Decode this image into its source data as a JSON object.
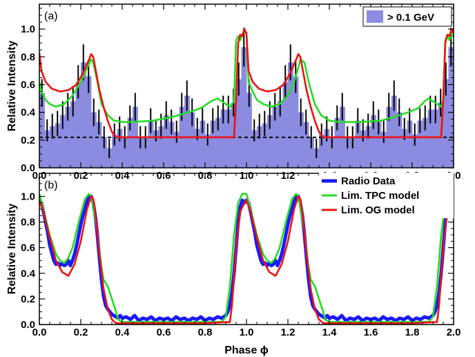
{
  "chart_data": [
    {
      "type": "bar",
      "panel_label": "(a)",
      "ylabel": "Relative Intensity",
      "xlabel": "",
      "xlim": [
        0.0,
        2.0
      ],
      "ylim": [
        0.0,
        1.18
      ],
      "xticks": [
        "0.0",
        "0.2",
        "0.4",
        "0.6",
        "0.8",
        "1.0",
        "1.2",
        "1.4",
        "1.6",
        "1.8",
        "2.0"
      ],
      "yticks": [
        "0.0",
        "0.2",
        "0.4",
        "0.6",
        "0.8",
        "1.0"
      ],
      "background_level": 0.22,
      "bars": {
        "name": "> 0.1 GeV",
        "color": "#8b8be0",
        "bin_width": 0.025,
        "values": [
          0.54,
          0.27,
          0.3,
          0.32,
          0.38,
          0.44,
          0.48,
          0.62,
          0.76,
          0.66,
          0.4,
          0.33,
          0.22,
          0.14,
          0.24,
          0.28,
          0.22,
          0.36,
          0.44,
          0.22,
          0.22,
          0.34,
          0.27,
          0.3,
          0.38,
          0.33,
          0.26,
          0.44,
          0.52,
          0.4,
          0.28,
          0.34,
          0.24,
          0.34,
          0.36,
          0.42,
          0.42,
          0.47,
          0.64,
          0.87,
          0.54,
          0.27,
          0.3,
          0.32,
          0.38,
          0.44,
          0.48,
          0.62,
          0.76,
          0.66,
          0.4,
          0.33,
          0.22,
          0.14,
          0.24,
          0.28,
          0.22,
          0.36,
          0.44,
          0.22,
          0.22,
          0.34,
          0.27,
          0.3,
          0.38,
          0.33,
          0.26,
          0.44,
          0.52,
          0.4,
          0.28,
          0.34,
          0.24,
          0.34,
          0.36,
          0.42,
          0.42,
          0.47,
          0.64,
          0.87
        ],
        "errors": [
          0.1,
          0.08,
          0.09,
          0.09,
          0.1,
          0.1,
          0.11,
          0.12,
          0.13,
          0.12,
          0.1,
          0.09,
          0.08,
          0.07,
          0.08,
          0.09,
          0.08,
          0.09,
          0.1,
          0.08,
          0.08,
          0.09,
          0.08,
          0.09,
          0.1,
          0.09,
          0.08,
          0.1,
          0.11,
          0.1,
          0.08,
          0.09,
          0.08,
          0.09,
          0.09,
          0.1,
          0.1,
          0.1,
          0.12,
          0.14,
          0.1,
          0.08,
          0.09,
          0.09,
          0.1,
          0.1,
          0.11,
          0.12,
          0.13,
          0.12,
          0.1,
          0.09,
          0.08,
          0.07,
          0.08,
          0.09,
          0.08,
          0.09,
          0.1,
          0.08,
          0.08,
          0.09,
          0.08,
          0.09,
          0.1,
          0.09,
          0.08,
          0.1,
          0.11,
          0.1,
          0.08,
          0.09,
          0.08,
          0.09,
          0.09,
          0.1,
          0.1,
          0.1,
          0.12,
          0.14
        ]
      },
      "series": [
        {
          "name": "Lim. TPC model",
          "color": "#22dd22",
          "x": [
            0.0,
            0.01,
            0.03,
            0.05,
            0.08,
            0.12,
            0.16,
            0.2,
            0.23,
            0.25,
            0.26,
            0.28,
            0.3,
            0.33,
            0.36,
            0.4,
            0.45,
            0.55,
            0.65,
            0.72,
            0.78,
            0.83,
            0.86,
            0.88,
            0.9,
            0.92,
            0.94,
            0.95,
            0.96,
            0.97,
            0.98,
            0.99,
            1.0,
            1.01,
            1.03,
            1.05,
            1.08,
            1.12,
            1.16,
            1.2,
            1.23,
            1.25,
            1.26,
            1.28,
            1.3,
            1.33,
            1.36,
            1.4,
            1.45,
            1.55,
            1.65,
            1.72,
            1.78,
            1.83,
            1.86,
            1.88,
            1.9,
            1.92,
            1.94,
            1.95,
            1.96,
            1.97,
            1.98,
            1.99,
            2.0
          ],
          "y": [
            0.62,
            0.55,
            0.49,
            0.46,
            0.44,
            0.46,
            0.52,
            0.62,
            0.72,
            0.78,
            0.76,
            0.62,
            0.46,
            0.38,
            0.34,
            0.33,
            0.33,
            0.34,
            0.37,
            0.4,
            0.43,
            0.48,
            0.5,
            0.48,
            0.46,
            0.44,
            0.48,
            0.92,
            0.95,
            0.92,
            0.96,
            1.0,
            0.96,
            0.62,
            0.55,
            0.49,
            0.46,
            0.44,
            0.46,
            0.52,
            0.62,
            0.72,
            0.78,
            0.76,
            0.62,
            0.46,
            0.38,
            0.34,
            0.33,
            0.33,
            0.34,
            0.37,
            0.4,
            0.43,
            0.48,
            0.5,
            0.48,
            0.46,
            0.44,
            0.48,
            0.92,
            0.95,
            0.92,
            0.96,
            1.0
          ]
        },
        {
          "name": "Lim. OG model",
          "color": "#ee1111",
          "x": [
            0.0,
            0.01,
            0.03,
            0.06,
            0.1,
            0.14,
            0.18,
            0.21,
            0.24,
            0.25,
            0.26,
            0.27,
            0.29,
            0.31,
            0.33,
            0.35,
            0.37,
            0.4,
            0.5,
            0.7,
            0.85,
            0.92,
            0.94,
            0.95,
            0.96,
            0.97,
            0.98,
            0.99,
            1.0,
            1.01,
            1.03,
            1.06,
            1.1,
            1.14,
            1.18,
            1.21,
            1.24,
            1.25,
            1.26,
            1.27,
            1.29,
            1.31,
            1.33,
            1.35,
            1.37,
            1.4,
            1.5,
            1.7,
            1.85,
            1.92,
            1.94,
            1.95,
            1.96,
            1.97,
            1.98,
            1.99,
            2.0
          ],
          "y": [
            0.83,
            0.7,
            0.62,
            0.57,
            0.55,
            0.56,
            0.6,
            0.68,
            0.78,
            0.82,
            0.8,
            0.72,
            0.56,
            0.44,
            0.34,
            0.26,
            0.22,
            0.22,
            0.22,
            0.22,
            0.22,
            0.22,
            0.22,
            0.5,
            0.9,
            0.96,
            0.95,
            1.0,
            0.97,
            0.7,
            0.62,
            0.57,
            0.55,
            0.56,
            0.6,
            0.68,
            0.78,
            0.82,
            0.8,
            0.72,
            0.56,
            0.44,
            0.34,
            0.26,
            0.22,
            0.22,
            0.22,
            0.22,
            0.22,
            0.22,
            0.22,
            0.5,
            0.9,
            0.96,
            0.95,
            1.0,
            0.97
          ]
        }
      ],
      "legend": "top-right"
    },
    {
      "type": "line",
      "panel_label": "(b)",
      "ylabel": "Relative Intensity",
      "xlabel": "Phase ϕ",
      "xlim": [
        0.0,
        2.0
      ],
      "ylim": [
        0.0,
        1.18
      ],
      "xticks": [
        "0.0",
        "0.2",
        "0.4",
        "0.6",
        "0.8",
        "1.0",
        "1.2",
        "1.4",
        "1.6",
        "1.8",
        "2.0"
      ],
      "yticks": [
        "0.0",
        "0.2",
        "0.4",
        "0.6",
        "0.8",
        "1.0"
      ],
      "series": [
        {
          "name": "Radio Data",
          "color": "#1a1aff",
          "x": [
            0.0,
            0.01,
            0.02,
            0.03,
            0.04,
            0.05,
            0.06,
            0.07,
            0.08,
            0.09,
            0.1,
            0.11,
            0.12,
            0.13,
            0.14,
            0.15,
            0.16,
            0.17,
            0.18,
            0.19,
            0.2,
            0.21,
            0.22,
            0.23,
            0.24,
            0.25,
            0.26,
            0.27,
            0.28,
            0.29,
            0.3,
            0.31,
            0.32,
            0.33,
            0.34,
            0.35,
            0.36,
            0.37,
            0.38,
            0.39,
            0.4,
            0.42,
            0.44,
            0.46,
            0.48,
            0.5,
            0.52,
            0.54,
            0.56,
            0.58,
            0.6,
            0.62,
            0.64,
            0.66,
            0.68,
            0.7,
            0.72,
            0.74,
            0.76,
            0.78,
            0.8,
            0.82,
            0.84,
            0.86,
            0.88,
            0.9,
            0.91,
            0.92,
            0.93,
            0.94,
            0.95,
            0.96,
            0.97,
            0.98,
            0.99,
            1.0,
            1.01,
            1.02,
            1.03,
            1.04,
            1.05,
            1.06,
            1.07,
            1.08,
            1.09,
            1.1,
            1.11,
            1.12,
            1.13,
            1.14,
            1.15,
            1.16,
            1.17,
            1.18,
            1.19,
            1.2,
            1.21,
            1.22,
            1.23,
            1.24,
            1.25,
            1.26,
            1.27,
            1.28,
            1.29,
            1.3,
            1.31,
            1.32,
            1.33,
            1.34,
            1.35,
            1.36,
            1.37,
            1.38,
            1.39,
            1.4,
            1.42,
            1.44,
            1.46,
            1.48,
            1.5,
            1.52,
            1.54,
            1.56,
            1.58,
            1.6,
            1.62,
            1.64,
            1.66,
            1.68,
            1.7,
            1.72,
            1.74,
            1.76,
            1.78,
            1.8,
            1.82,
            1.84,
            1.86,
            1.88,
            1.9,
            1.91,
            1.92,
            1.93,
            1.94,
            1.95,
            1.96,
            1.97,
            1.98,
            1.99,
            2.0
          ],
          "y": [
            0.97,
            0.95,
            0.88,
            0.8,
            0.72,
            0.62,
            0.56,
            0.5,
            0.47,
            0.48,
            0.46,
            0.48,
            0.46,
            0.47,
            0.5,
            0.46,
            0.5,
            0.55,
            0.62,
            0.7,
            0.78,
            0.85,
            0.9,
            0.96,
            1.0,
            1.0,
            0.95,
            0.85,
            0.7,
            0.52,
            0.35,
            0.22,
            0.15,
            0.12,
            0.1,
            0.08,
            0.07,
            0.06,
            0.05,
            0.07,
            0.05,
            0.06,
            0.04,
            0.07,
            0.03,
            0.05,
            0.04,
            0.06,
            0.03,
            0.05,
            0.04,
            0.05,
            0.03,
            0.06,
            0.04,
            0.05,
            0.03,
            0.05,
            0.04,
            0.06,
            0.03,
            0.05,
            0.04,
            0.06,
            0.05,
            0.07,
            0.1,
            0.15,
            0.25,
            0.4,
            0.6,
            0.8,
            0.92,
            0.97,
            0.95,
            0.97,
            0.95,
            0.88,
            0.8,
            0.72,
            0.62,
            0.56,
            0.5,
            0.47,
            0.48,
            0.46,
            0.48,
            0.46,
            0.47,
            0.5,
            0.46,
            0.5,
            0.55,
            0.62,
            0.7,
            0.78,
            0.85,
            0.9,
            0.96,
            1.0,
            1.0,
            0.95,
            0.85,
            0.7,
            0.52,
            0.35,
            0.22,
            0.15,
            0.12,
            0.1,
            0.08,
            0.07,
            0.06,
            0.05,
            0.07,
            0.05,
            0.06,
            0.04,
            0.07,
            0.03,
            0.05,
            0.04,
            0.06,
            0.03,
            0.05,
            0.04,
            0.05,
            0.03,
            0.06,
            0.04,
            0.05,
            0.03,
            0.05,
            0.04,
            0.06,
            0.03,
            0.05,
            0.04,
            0.06,
            0.05,
            0.07,
            0.1,
            0.15,
            0.25,
            0.4,
            0.6,
            0.8,
            0.92,
            0.97,
            0.95,
            0.97
          ]
        },
        {
          "name": "Lim. TPC model",
          "color": "#22dd22",
          "x": [
            0.0,
            0.02,
            0.05,
            0.08,
            0.1,
            0.12,
            0.14,
            0.16,
            0.19,
            0.22,
            0.24,
            0.25,
            0.26,
            0.28,
            0.3,
            0.31,
            0.33,
            0.35,
            0.37,
            0.38,
            0.4,
            0.45,
            0.6,
            0.8,
            0.88,
            0.9,
            0.92,
            0.94,
            0.96,
            0.98,
            1.0,
            1.02,
            1.05,
            1.08,
            1.1,
            1.12,
            1.14,
            1.16,
            1.19,
            1.22,
            1.24,
            1.25,
            1.26,
            1.28,
            1.3,
            1.31,
            1.33,
            1.35,
            1.37,
            1.38,
            1.4,
            1.45,
            1.6,
            1.8,
            1.88,
            1.9,
            1.92,
            1.94,
            1.96,
            1.98,
            2.0
          ],
          "y": [
            1.02,
            0.9,
            0.7,
            0.55,
            0.5,
            0.48,
            0.52,
            0.6,
            0.8,
            0.98,
            1.02,
            1.0,
            0.92,
            0.72,
            0.45,
            0.35,
            0.3,
            0.2,
            0.1,
            0.04,
            0.02,
            0.02,
            0.02,
            0.02,
            0.02,
            0.06,
            0.3,
            0.7,
            0.95,
            1.02,
            1.02,
            0.9,
            0.7,
            0.55,
            0.5,
            0.48,
            0.52,
            0.6,
            0.8,
            0.98,
            1.02,
            1.0,
            0.92,
            0.72,
            0.45,
            0.35,
            0.3,
            0.2,
            0.1,
            0.04,
            0.02,
            0.02,
            0.02,
            0.02,
            0.02,
            0.06,
            0.3,
            0.7,
            0.95,
            1.02,
            1.02
          ]
        },
        {
          "name": "Lim. OG model",
          "color": "#ee1111",
          "x": [
            0.0,
            0.02,
            0.05,
            0.08,
            0.11,
            0.14,
            0.17,
            0.2,
            0.23,
            0.25,
            0.26,
            0.27,
            0.29,
            0.31,
            0.33,
            0.35,
            0.37,
            0.4,
            0.6,
            0.8,
            0.92,
            0.93,
            0.95,
            0.97,
            0.99,
            1.0,
            1.02,
            1.05,
            1.08,
            1.11,
            1.14,
            1.17,
            1.2,
            1.23,
            1.25,
            1.26,
            1.27,
            1.29,
            1.31,
            1.33,
            1.35,
            1.37,
            1.4,
            1.6,
            1.8,
            1.92,
            1.93,
            1.95,
            1.97,
            1.99,
            2.0
          ],
          "y": [
            0.97,
            0.88,
            0.68,
            0.5,
            0.41,
            0.38,
            0.47,
            0.65,
            0.9,
            1.0,
            0.98,
            0.88,
            0.55,
            0.28,
            0.12,
            0.04,
            0.01,
            0.01,
            0.01,
            0.01,
            0.02,
            0.15,
            0.6,
            0.88,
            0.95,
            0.97,
            0.88,
            0.68,
            0.5,
            0.41,
            0.38,
            0.47,
            0.65,
            0.9,
            1.0,
            0.98,
            0.88,
            0.55,
            0.28,
            0.12,
            0.04,
            0.01,
            0.01,
            0.01,
            0.01,
            0.02,
            0.15,
            0.6,
            0.88,
            0.95,
            0.97
          ]
        }
      ],
      "legend": "top-right"
    }
  ]
}
